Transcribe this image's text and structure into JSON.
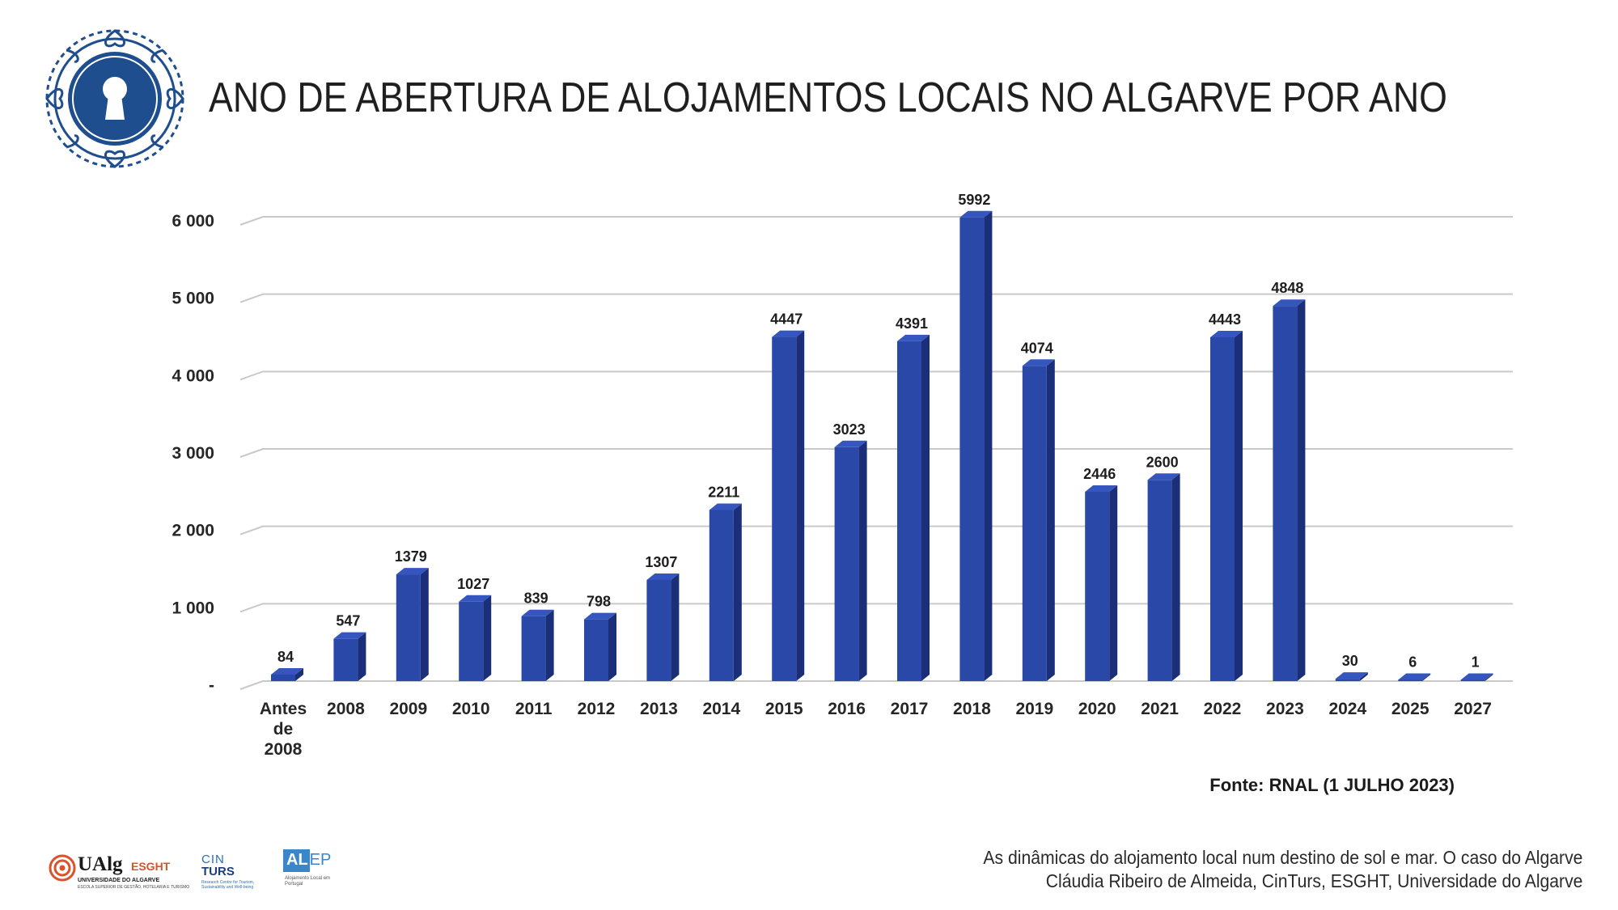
{
  "header": {
    "title": "ANO DE ABERTURA DE ALOJAMENTOS LOCAIS NO ALGARVE POR ANO",
    "emblem_icon": "keyhole-ornament-icon"
  },
  "colors": {
    "bar_front": "#2948a8",
    "bar_side": "#1a2f78",
    "bar_top": "#3656bf",
    "gridline": "#c9c9c9",
    "emblem": "#1f4e8e"
  },
  "chart_data": {
    "type": "bar",
    "style": "3d-column",
    "categories": [
      "Antes de 2008",
      "2008",
      "2009",
      "2010",
      "2011",
      "2012",
      "2013",
      "2014",
      "2015",
      "2016",
      "2017",
      "2018",
      "2019",
      "2020",
      "2021",
      "2022",
      "2023",
      "2024",
      "2025",
      "2027"
    ],
    "category_label_lines": [
      [
        "Antes",
        "de",
        "2008"
      ],
      [
        "2008"
      ],
      [
        "2009"
      ],
      [
        "2010"
      ],
      [
        "2011"
      ],
      [
        "2012"
      ],
      [
        "2013"
      ],
      [
        "2014"
      ],
      [
        "2015"
      ],
      [
        "2016"
      ],
      [
        "2017"
      ],
      [
        "2018"
      ],
      [
        "2019"
      ],
      [
        "2020"
      ],
      [
        "2021"
      ],
      [
        "2022"
      ],
      [
        "2023"
      ],
      [
        "2024"
      ],
      [
        "2025"
      ],
      [
        "2027"
      ]
    ],
    "values": [
      84,
      547,
      1379,
      1027,
      839,
      798,
      1307,
      2211,
      4447,
      3023,
      4391,
      5992,
      4074,
      2446,
      2600,
      4443,
      4848,
      30,
      6,
      1
    ],
    "data_labels": [
      "84",
      "547",
      "1379",
      "1027",
      "839",
      "798",
      "1307",
      "2211",
      "4447",
      "3023",
      "4391",
      "5992",
      "4074",
      "2446",
      "2600",
      "4443",
      "4848",
      "30",
      "6",
      "1"
    ],
    "y_ticks": [
      0,
      1000,
      2000,
      3000,
      4000,
      5000,
      6000
    ],
    "y_tick_labels": [
      "-",
      "1 000",
      "2 000",
      "3 000",
      "4 000",
      "5 000",
      "6 000"
    ],
    "ylim": [
      0,
      6000
    ],
    "grid": true,
    "legend": "none",
    "title": "",
    "xlabel": "",
    "ylabel": ""
  },
  "source_note": "Fonte: RNAL (1 JULHO 2023)",
  "footer": {
    "citation_line1": "As dinâmicas do alojamento local num destino de sol e mar. O caso do Algarve",
    "citation_line2": "Cláudia Ribeiro de Almeida, CinTurs, ESGHT, Universidade do Algarve",
    "logo_ualg_name": "UAlg",
    "logo_ualg_unit": "ESGHT",
    "logo_ualg_sub1": "UNIVERSIDADE DO ALGARVE",
    "logo_ualg_sub2": "ESCOLA SUPERIOR DE GESTÃO, HOTELARIA E TURISMO",
    "logo_cinturs_top": "CIN",
    "logo_cinturs_bottom": "TURS",
    "logo_cinturs_sub": "Research Centre for Tourism, Sustainability and Well-being",
    "logo_alep_a": "AL",
    "logo_alep_rest": "EP",
    "logo_alep_sub": "Alojamento Local em Portugal"
  }
}
